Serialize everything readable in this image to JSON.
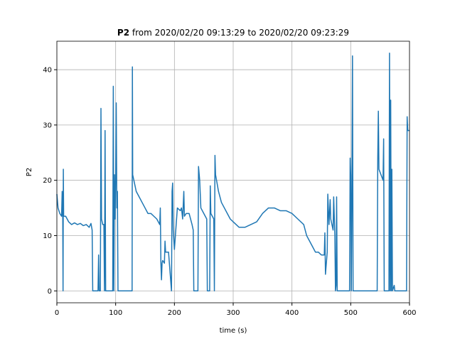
{
  "chart_data": {
    "type": "line",
    "title": [
      "P2",
      "from 2020/02/20 09:13:29 to 2020/02/20 09:23:29"
    ],
    "xlabel": "time (s)",
    "ylabel": "P2",
    "color": "#1f77b4",
    "grid": true,
    "xlim": [
      0,
      600
    ],
    "xticks": [
      0,
      100,
      200,
      300,
      400,
      500,
      600
    ],
    "ylim": [
      -2.15,
      45.15
    ],
    "yticks": [
      0,
      10,
      20,
      30,
      40
    ],
    "x": [
      0,
      2,
      5,
      8,
      9,
      10,
      10.5,
      11,
      11.5,
      15,
      20,
      25,
      30,
      35,
      40,
      45,
      50,
      55,
      58,
      60,
      61,
      70,
      71,
      72,
      74,
      75,
      76,
      78,
      80,
      81,
      82,
      83,
      95,
      96,
      97,
      98,
      99,
      100,
      101,
      102,
      103,
      104,
      128,
      128.5,
      129,
      135,
      140,
      145,
      150,
      155,
      160,
      165,
      170,
      175,
      176,
      177,
      178,
      179,
      180,
      183,
      184,
      185,
      190,
      195,
      196,
      197,
      198,
      200,
      205,
      210,
      212,
      214,
      216,
      217,
      220,
      225,
      230,
      232,
      233,
      240,
      241,
      243,
      245,
      250,
      255,
      256,
      260,
      261,
      262,
      267,
      268,
      269,
      270,
      275,
      280,
      285,
      290,
      295,
      300,
      310,
      320,
      330,
      340,
      350,
      360,
      370,
      380,
      390,
      400,
      410,
      420,
      425,
      430,
      435,
      440,
      445,
      450,
      455,
      456,
      457,
      460,
      461,
      463,
      465,
      466,
      470,
      471,
      473,
      474,
      475,
      476,
      477,
      498,
      499,
      500,
      501,
      502,
      503,
      504,
      545,
      546,
      547,
      548,
      555,
      556,
      557,
      565,
      566,
      567,
      568,
      569,
      570,
      571,
      574,
      575,
      595,
      596,
      597,
      600
    ],
    "values": [
      17.5,
      15,
      14,
      13.5,
      18,
      13,
      0,
      22,
      13.5,
      13.5,
      12.5,
      12,
      12.3,
      12,
      12.2,
      11.8,
      12,
      11.5,
      12.2,
      11,
      0,
      0,
      6.5,
      0,
      0,
      33,
      13,
      12,
      12,
      0,
      29,
      0,
      0,
      37,
      0,
      21,
      13,
      20,
      34,
      15,
      18,
      0,
      0,
      40.5,
      21,
      18,
      17,
      16,
      15,
      14,
      14,
      13.5,
      13,
      12,
      15,
      5,
      2,
      5,
      5.5,
      5,
      9,
      7,
      7,
      0,
      18,
      19.5,
      11,
      7.5,
      15,
      14.5,
      15,
      13,
      18,
      13.5,
      14,
      14,
      12,
      11,
      0,
      0,
      22.5,
      20,
      15,
      14,
      13,
      0,
      0,
      19,
      14,
      13,
      0,
      24.5,
      21,
      18,
      16,
      15,
      14,
      13,
      12.5,
      11.5,
      11.5,
      12,
      12.5,
      14,
      15,
      15,
      14.5,
      14.5,
      14,
      13,
      12,
      10,
      9,
      8,
      7,
      7,
      6.5,
      6.5,
      10.5,
      3,
      7,
      17.5,
      12,
      16.5,
      13,
      11,
      17,
      10,
      0,
      1,
      17,
      0,
      0,
      24,
      21,
      0,
      18,
      42.5,
      0,
      0,
      24,
      32.5,
      22,
      20,
      27.5,
      0,
      0,
      43,
      0,
      34.5,
      0,
      22,
      0,
      1,
      0,
      0,
      31.5,
      29,
      29
    ]
  }
}
